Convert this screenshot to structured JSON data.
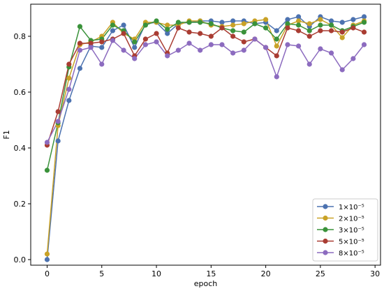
{
  "chart_data": {
    "type": "line",
    "xlabel": "epoch",
    "ylabel": "F1",
    "xlim": [
      -1.5,
      30.5
    ],
    "ylim": [
      -0.02,
      0.915
    ],
    "xticks": [
      0,
      5,
      10,
      15,
      20,
      25,
      30
    ],
    "yticks": [
      0.0,
      0.2,
      0.4,
      0.6,
      0.8
    ],
    "grid": false,
    "legend_position": "lower-right",
    "x": [
      0,
      1,
      2,
      3,
      4,
      5,
      6,
      7,
      8,
      9,
      10,
      11,
      12,
      13,
      14,
      15,
      16,
      17,
      18,
      19,
      20,
      21,
      22,
      23,
      24,
      25,
      26,
      27,
      28,
      29
    ],
    "series": [
      {
        "name": "1×10⁻⁵",
        "color": "#4c72b0",
        "values": [
          0.0,
          0.425,
          0.57,
          0.685,
          0.765,
          0.76,
          0.82,
          0.84,
          0.76,
          0.845,
          0.85,
          0.81,
          0.845,
          0.85,
          0.855,
          0.855,
          0.85,
          0.855,
          0.855,
          0.845,
          0.85,
          0.82,
          0.86,
          0.87,
          0.835,
          0.87,
          0.855,
          0.85,
          0.86,
          0.87
        ]
      },
      {
        "name": "2×10⁻⁵",
        "color": "#c9a227",
        "values": [
          0.02,
          0.48,
          0.65,
          0.77,
          0.78,
          0.8,
          0.85,
          0.81,
          0.79,
          0.85,
          0.85,
          0.84,
          0.84,
          0.855,
          0.855,
          0.84,
          0.835,
          0.84,
          0.845,
          0.855,
          0.86,
          0.765,
          0.84,
          0.855,
          0.845,
          0.86,
          0.84,
          0.795,
          0.84,
          0.855
        ]
      },
      {
        "name": "3×10⁻⁵",
        "color": "#3a923a",
        "values": [
          0.32,
          0.49,
          0.69,
          0.835,
          0.785,
          0.79,
          0.84,
          0.82,
          0.78,
          0.84,
          0.855,
          0.825,
          0.85,
          0.85,
          0.85,
          0.845,
          0.83,
          0.82,
          0.815,
          0.845,
          0.83,
          0.79,
          0.845,
          0.84,
          0.82,
          0.84,
          0.84,
          0.82,
          0.835,
          0.85
        ]
      },
      {
        "name": "5×10⁻⁵",
        "color": "#a93c32",
        "values": [
          0.41,
          0.53,
          0.7,
          0.775,
          0.775,
          0.78,
          0.79,
          0.81,
          0.73,
          0.79,
          0.81,
          0.74,
          0.83,
          0.815,
          0.81,
          0.8,
          0.83,
          0.8,
          0.78,
          0.79,
          0.76,
          0.73,
          0.83,
          0.82,
          0.8,
          0.82,
          0.82,
          0.815,
          0.83,
          0.815
        ]
      },
      {
        "name": "8×10⁻⁵",
        "color": "#8c6bbf",
        "values": [
          0.42,
          0.495,
          0.61,
          0.75,
          0.76,
          0.7,
          0.785,
          0.75,
          0.72,
          0.77,
          0.78,
          0.73,
          0.75,
          0.775,
          0.75,
          0.77,
          0.77,
          0.74,
          0.75,
          0.79,
          0.76,
          0.655,
          0.77,
          0.765,
          0.7,
          0.755,
          0.74,
          0.68,
          0.72,
          0.77
        ]
      }
    ]
  }
}
